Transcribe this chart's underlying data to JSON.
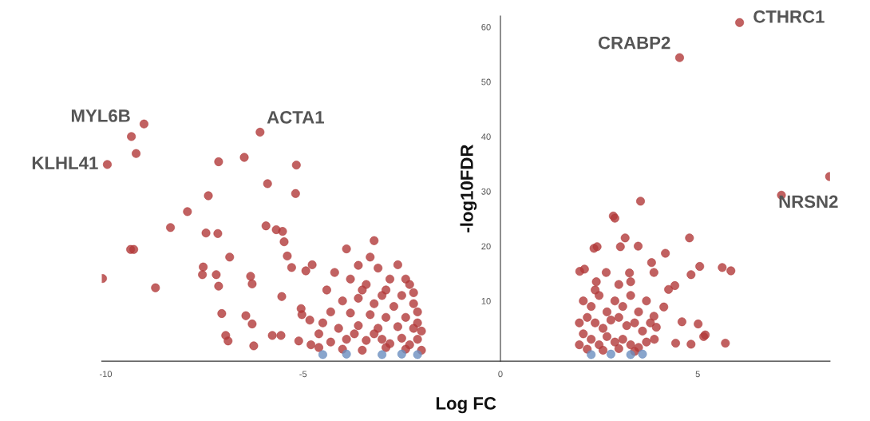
{
  "chart_data": {
    "type": "scatter",
    "xlabel": "Log FC",
    "ylabel": "-log10FDR",
    "xlim": [
      -10.1,
      8.35
    ],
    "ylim": [
      -1,
      62
    ],
    "xticks": [
      -10,
      -5,
      0,
      5
    ],
    "yticks": [
      10,
      20,
      30,
      40,
      50,
      60
    ],
    "grid": false,
    "legend": false,
    "marker": "circle",
    "series": [
      {
        "color": "#b23a3a",
        "x": [
          -9.03,
          -9.35,
          -9.23,
          -9.96,
          -10.08,
          -8.36,
          -7.93,
          -7.4,
          -7.14,
          -6.49,
          -6.09,
          -5.9,
          -5.17,
          -5.19,
          -5.94,
          -5.68,
          -5.52,
          -5.48,
          -9.37,
          -9.29,
          -8.74,
          -7.46,
          -7.16,
          -6.86,
          -7.53,
          -7.55,
          -7.2,
          -7.14,
          -6.33,
          -6.29,
          -5.54,
          -7.06,
          -6.45,
          -6.96,
          -6.9,
          -6.29,
          -5.78,
          -5.56,
          -5.11,
          -6.25,
          -5.29,
          -4.93,
          -4.77,
          -5.4,
          -5.05,
          -5.03,
          -4.83,
          -3.9,
          -3.2,
          -3.3,
          -3.1,
          -3.6,
          -2.6,
          -2.8,
          -2.3,
          -2.5,
          -2.9,
          -3.4,
          -3.8,
          -4.2,
          -4.4,
          -4.0,
          -3.6,
          -3.2,
          -2.7,
          -2.2,
          -2.1,
          -2.4,
          -2.9,
          -3.3,
          -3.8,
          -4.3,
          -4.5,
          -4.1,
          -3.6,
          -3.1,
          -2.6,
          -2.2,
          -2.1,
          -2.5,
          -3.0,
          -3.4,
          -3.9,
          -4.3,
          -4.6,
          -4.0,
          -3.5,
          -2.9,
          -2.4,
          -2.0,
          -2.3,
          -2.8,
          -3.2,
          -3.7,
          -2.1,
          -2.0,
          -2.2,
          -2.4,
          -3.5,
          -3.0,
          -4.6,
          -4.8,
          6.06,
          4.54,
          8.34,
          7.12,
          3.55,
          2.86,
          2.9,
          4.79,
          3.16,
          3.04,
          3.49,
          2.37,
          2.45,
          4.18,
          5.05,
          5.62,
          5.84,
          4.83,
          4.42,
          4.26,
          2.01,
          2.13,
          2.43,
          2.68,
          3.27,
          3.83,
          3.89,
          4.14,
          3.89,
          3.95,
          4.6,
          5.01,
          5.19,
          5.15,
          4.83,
          5.7,
          4.44,
          2.1,
          2.3,
          2.5,
          2.7,
          2.9,
          3.1,
          3.3,
          3.5,
          3.7,
          2.2,
          2.4,
          2.6,
          2.8,
          3.0,
          3.2,
          3.4,
          3.6,
          2.1,
          2.3,
          2.5,
          2.7,
          2.9,
          3.1,
          3.3,
          3.5,
          3.7,
          2.2,
          2.6,
          3.0,
          3.4,
          2.0,
          2.0,
          3.8,
          3.9,
          2.4,
          3.0,
          3.3
        ],
        "values": [
          42.3,
          40.0,
          36.9,
          34.9,
          14.1,
          23.4,
          26.3,
          29.2,
          35.4,
          36.2,
          40.8,
          31.4,
          34.8,
          29.6,
          23.7,
          23.0,
          22.7,
          20.8,
          19.4,
          19.4,
          12.4,
          22.4,
          22.3,
          18.0,
          16.2,
          14.8,
          14.8,
          12.7,
          14.5,
          13.1,
          10.8,
          7.7,
          7.3,
          3.7,
          2.7,
          5.8,
          3.7,
          3.7,
          2.7,
          1.8,
          16.1,
          15.5,
          16.6,
          18.2,
          8.6,
          7.5,
          6.5,
          19.5,
          21,
          18,
          16,
          16.5,
          16.6,
          14,
          13,
          11,
          12,
          13,
          14,
          15.2,
          12,
          10,
          10.5,
          9.5,
          9,
          9.5,
          8,
          7,
          7,
          7.5,
          7.8,
          8,
          6,
          5,
          5.5,
          5,
          5.3,
          5,
          3,
          3.2,
          3,
          2.8,
          3,
          2.5,
          1.5,
          1.2,
          1,
          1.5,
          1.2,
          1,
          2,
          2.2,
          4,
          4,
          6,
          4.5,
          11.5,
          14,
          12,
          11,
          4,
          2,
          60.8,
          54.4,
          32.7,
          29.3,
          28.2,
          25.5,
          25.1,
          21.5,
          21.5,
          19.9,
          20.0,
          19.6,
          19.9,
          18.7,
          16.3,
          16.1,
          15.5,
          14.8,
          12.8,
          12.1,
          15.4,
          15.8,
          13.5,
          15.2,
          15.1,
          17.0,
          15.2,
          8.9,
          7.2,
          5.2,
          6.2,
          5.8,
          3.8,
          3.5,
          2.1,
          2.3,
          2.3,
          10,
          9,
          11,
          8,
          10,
          9,
          11,
          8,
          10,
          7,
          6,
          5,
          6.5,
          7,
          5.5,
          6,
          4.5,
          4,
          3,
          2,
          3.5,
          2.5,
          3,
          2,
          1.5,
          2.5,
          1.2,
          1,
          1.3,
          0.8,
          2,
          6,
          6,
          3,
          12,
          13,
          13.5
        ]
      },
      {
        "color": "#6b8ebf",
        "x": [
          -4.5,
          -3.9,
          -3.0,
          -2.5,
          -2.1,
          2.3,
          2.8,
          3.3,
          3.6
        ],
        "values": [
          0.2,
          0.3,
          0.2,
          0.3,
          0.2,
          0.2,
          0.3,
          0.2,
          0.3
        ]
      }
    ],
    "annotations": [
      {
        "text": "MYL6B",
        "x": -9.03,
        "y": 42.3
      },
      {
        "text": "KLHL41",
        "x": -9.96,
        "y": 34.9
      },
      {
        "text": "ACTA1",
        "x": -6.09,
        "y": 40.8
      },
      {
        "text": "CRABP2",
        "x": 4.54,
        "y": 54.4
      },
      {
        "text": "CTHRC1",
        "x": 6.06,
        "y": 60.8
      },
      {
        "text": "NRSN2",
        "x": 8.34,
        "y": 32.7
      }
    ]
  }
}
